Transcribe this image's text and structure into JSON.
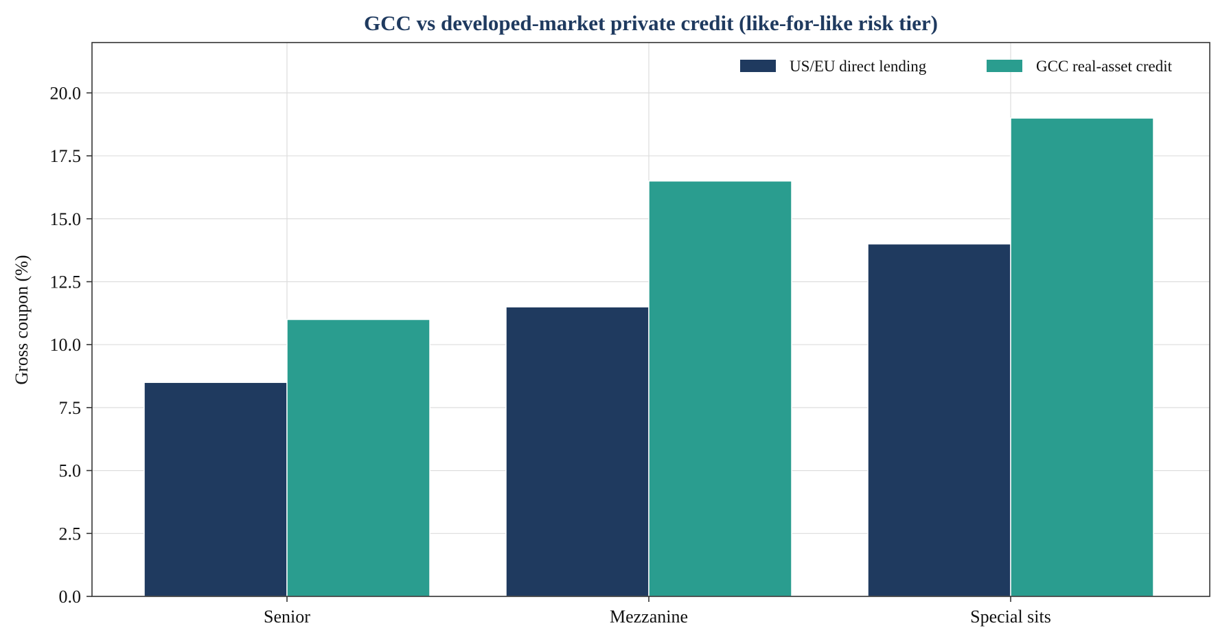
{
  "chart_data": {
    "type": "bar",
    "title": "GCC vs developed-market private credit (like-for-like risk tier)",
    "xlabel": "",
    "ylabel": "Gross coupon (%)",
    "categories": [
      "Senior",
      "Mezzanine",
      "Special sits"
    ],
    "series": [
      {
        "name": "US/EU direct lending",
        "values": [
          8.5,
          11.5,
          14.0
        ],
        "color": "#1f3a5f"
      },
      {
        "name": "GCC real-asset credit",
        "values": [
          11.0,
          16.5,
          19.0
        ],
        "color": "#2a9d8f"
      }
    ],
    "ylim": [
      0,
      22
    ],
    "yticks": [
      "0.0",
      "2.5",
      "5.0",
      "7.5",
      "10.0",
      "12.5",
      "15.0",
      "17.5",
      "20.0"
    ],
    "grid": true,
    "legend_position": "top-right"
  }
}
